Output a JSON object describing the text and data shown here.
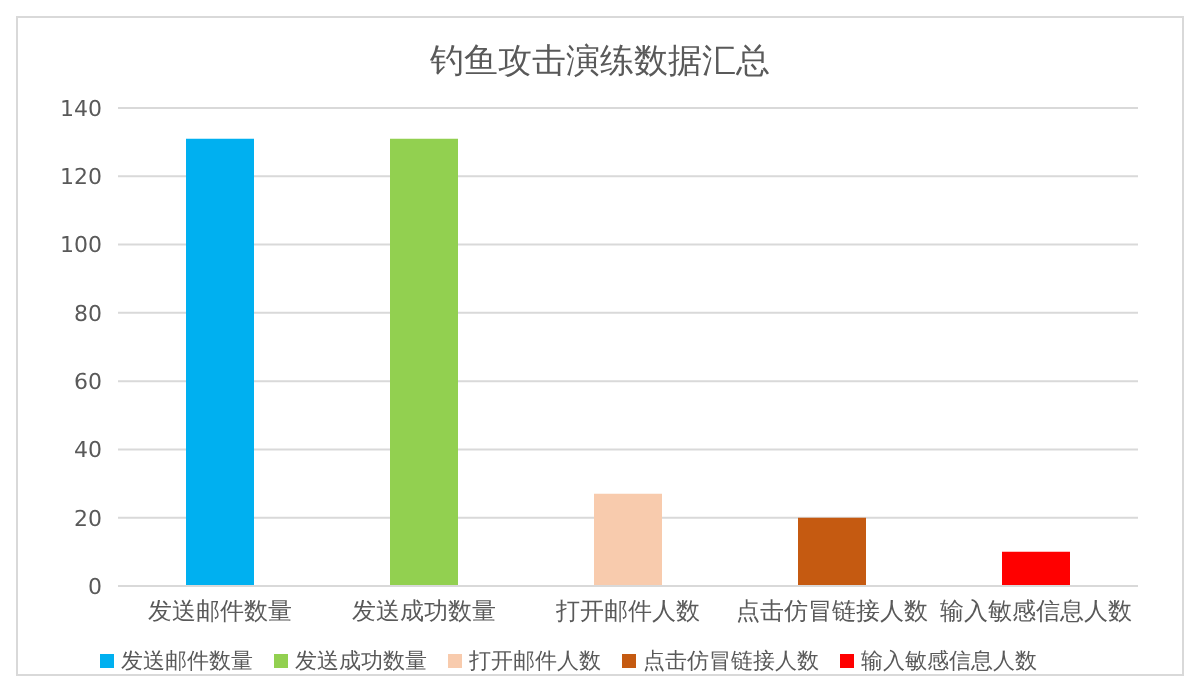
{
  "chart_data": {
    "type": "bar",
    "title": "钓鱼攻击演练数据汇总",
    "categories": [
      "发送邮件数量",
      "发送成功数量",
      "打开邮件人数",
      "点击仿冒链接人数",
      "输入敏感信息人数"
    ],
    "series": [
      {
        "name": "发送邮件数量",
        "color": "#00b0f0",
        "values": [
          131,
          null,
          null,
          null,
          null
        ]
      },
      {
        "name": "发送成功数量",
        "color": "#92d050",
        "values": [
          null,
          131,
          null,
          null,
          null
        ]
      },
      {
        "name": "打开邮件人数",
        "color": "#f8cbad",
        "values": [
          null,
          null,
          27,
          null,
          null
        ]
      },
      {
        "name": "点击仿冒链接人数",
        "color": "#c55a11",
        "values": [
          null,
          null,
          null,
          20,
          null
        ]
      },
      {
        "name": "输入敏感信息人数",
        "color": "#ff0000",
        "values": [
          null,
          null,
          null,
          null,
          10
        ]
      }
    ],
    "stacked": true,
    "ylim": [
      0,
      140
    ],
    "yticks": [
      0,
      20,
      40,
      60,
      80,
      100,
      120,
      140
    ],
    "grid": "y",
    "legend": "bottom"
  }
}
